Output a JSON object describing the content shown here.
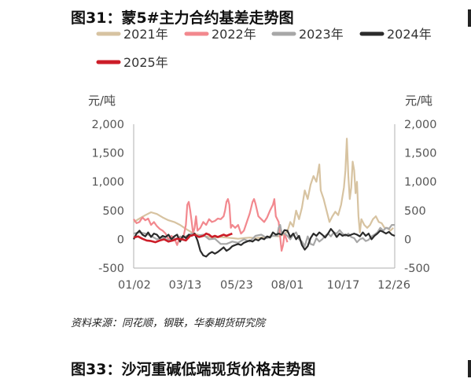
{
  "figure": {
    "title": "图31：蒙5#主力合约基差走势图",
    "source": "资料来源：同花顺，钢联，华泰期货研究院",
    "next_title": "图33：沙河重碱低端现货价格走势图"
  },
  "chart_data": {
    "type": "line",
    "unit_left": "元/吨",
    "unit_right": "元/吨",
    "ylim": [
      -500,
      2000
    ],
    "yticks": [
      "2,000",
      "1,500",
      "1,000",
      "500",
      "0",
      "-500"
    ],
    "ytick_values": [
      2000,
      1500,
      1000,
      500,
      0,
      -500
    ],
    "xlim": [
      0,
      360
    ],
    "xticks": [
      "01/02",
      "03/13",
      "05/23",
      "08/01",
      "10/17",
      "12/26"
    ],
    "xtick_days": [
      1,
      71,
      142,
      212,
      289,
      359
    ],
    "grid": false,
    "legend_position": "top",
    "series": [
      {
        "name": "2021年",
        "color": "#d7c3a1",
        "points": [
          [
            0,
            300
          ],
          [
            8,
            360
          ],
          [
            16,
            420
          ],
          [
            24,
            470
          ],
          [
            32,
            440
          ],
          [
            40,
            380
          ],
          [
            48,
            330
          ],
          [
            56,
            300
          ],
          [
            64,
            250
          ],
          [
            72,
            180
          ],
          [
            80,
            120
          ],
          [
            88,
            80
          ],
          [
            96,
            60
          ],
          [
            104,
            40
          ],
          [
            112,
            30
          ],
          [
            120,
            40
          ],
          [
            128,
            30
          ],
          [
            136,
            20
          ],
          [
            144,
            10
          ],
          [
            152,
            20
          ],
          [
            160,
            30
          ],
          [
            168,
            20
          ],
          [
            176,
            30
          ],
          [
            184,
            40
          ],
          [
            192,
            60
          ],
          [
            200,
            50
          ],
          [
            208,
            90
          ],
          [
            212,
            140
          ],
          [
            216,
            300
          ],
          [
            220,
            220
          ],
          [
            224,
            500
          ],
          [
            228,
            350
          ],
          [
            232,
            550
          ],
          [
            236,
            850
          ],
          [
            240,
            700
          ],
          [
            244,
            950
          ],
          [
            248,
            1100
          ],
          [
            252,
            1000
          ],
          [
            256,
            1300
          ],
          [
            258,
            850
          ],
          [
            262,
            700
          ],
          [
            266,
            500
          ],
          [
            270,
            300
          ],
          [
            274,
            400
          ],
          [
            278,
            480
          ],
          [
            282,
            420
          ],
          [
            286,
            600
          ],
          [
            290,
            900
          ],
          [
            292,
            1200
          ],
          [
            294,
            1750
          ],
          [
            296,
            1100
          ],
          [
            298,
            700
          ],
          [
            300,
            900
          ],
          [
            302,
            1350
          ],
          [
            304,
            1200
          ],
          [
            306,
            800
          ],
          [
            308,
            1000
          ],
          [
            310,
            400
          ],
          [
            312,
            120
          ],
          [
            314,
            350
          ],
          [
            318,
            250
          ],
          [
            322,
            200
          ],
          [
            326,
            250
          ],
          [
            330,
            350
          ],
          [
            334,
            400
          ],
          [
            338,
            300
          ],
          [
            342,
            280
          ],
          [
            346,
            200
          ],
          [
            350,
            200
          ],
          [
            354,
            150
          ],
          [
            358,
            200
          ]
        ]
      },
      {
        "name": "2022年",
        "color": "#f2888e",
        "points": [
          [
            0,
            350
          ],
          [
            4,
            280
          ],
          [
            8,
            300
          ],
          [
            12,
            380
          ],
          [
            16,
            330
          ],
          [
            20,
            360
          ],
          [
            24,
            250
          ],
          [
            28,
            300
          ],
          [
            32,
            230
          ],
          [
            36,
            180
          ],
          [
            40,
            150
          ],
          [
            44,
            100
          ],
          [
            48,
            0
          ],
          [
            52,
            60
          ],
          [
            56,
            20
          ],
          [
            60,
            -100
          ],
          [
            64,
            50
          ],
          [
            68,
            0
          ],
          [
            72,
            250
          ],
          [
            74,
            600
          ],
          [
            76,
            650
          ],
          [
            78,
            500
          ],
          [
            80,
            300
          ],
          [
            82,
            100
          ],
          [
            84,
            200
          ],
          [
            86,
            400
          ],
          [
            88,
            150
          ],
          [
            92,
            200
          ],
          [
            96,
            300
          ],
          [
            100,
            250
          ],
          [
            104,
            350
          ],
          [
            108,
            300
          ],
          [
            112,
            320
          ],
          [
            116,
            360
          ],
          [
            120,
            350
          ],
          [
            124,
            400
          ],
          [
            126,
            500
          ],
          [
            128,
            650
          ],
          [
            130,
            700
          ],
          [
            132,
            600
          ],
          [
            134,
            200
          ],
          [
            136,
            250
          ],
          [
            140,
            200
          ],
          [
            144,
            250
          ],
          [
            148,
            100
          ],
          [
            152,
            150
          ],
          [
            156,
            300
          ],
          [
            160,
            450
          ],
          [
            164,
            650
          ],
          [
            166,
            700
          ],
          [
            168,
            620
          ],
          [
            172,
            400
          ],
          [
            176,
            350
          ],
          [
            180,
            300
          ],
          [
            184,
            380
          ],
          [
            188,
            500
          ],
          [
            192,
            600
          ],
          [
            194,
            700
          ],
          [
            196,
            400
          ],
          [
            200,
            300
          ],
          [
            204,
            -200
          ],
          [
            206,
            -100
          ],
          [
            208,
            100
          ],
          [
            212,
            -50
          ]
        ]
      },
      {
        "name": "2023年",
        "color": "#a7a7a7",
        "points": [
          [
            0,
            100
          ],
          [
            8,
            120
          ],
          [
            16,
            100
          ],
          [
            24,
            60
          ],
          [
            32,
            0
          ],
          [
            40,
            30
          ],
          [
            48,
            -20
          ],
          [
            56,
            0
          ],
          [
            64,
            40
          ],
          [
            72,
            50
          ],
          [
            80,
            100
          ],
          [
            88,
            60
          ],
          [
            96,
            80
          ],
          [
            104,
            0
          ],
          [
            112,
            10
          ],
          [
            120,
            -80
          ],
          [
            128,
            -80
          ],
          [
            136,
            -40
          ],
          [
            144,
            -60
          ],
          [
            152,
            0
          ],
          [
            160,
            -40
          ],
          [
            168,
            60
          ],
          [
            176,
            80
          ],
          [
            184,
            20
          ],
          [
            192,
            60
          ],
          [
            198,
            60
          ],
          [
            200,
            200
          ],
          [
            202,
            250
          ],
          [
            204,
            120
          ],
          [
            208,
            100
          ],
          [
            212,
            60
          ],
          [
            216,
            0
          ],
          [
            220,
            80
          ],
          [
            224,
            120
          ],
          [
            228,
            0
          ],
          [
            232,
            -40
          ],
          [
            236,
            -120
          ],
          [
            240,
            50
          ],
          [
            244,
            -80
          ],
          [
            248,
            -100
          ],
          [
            252,
            20
          ],
          [
            256,
            -40
          ],
          [
            260,
            0
          ],
          [
            264,
            60
          ],
          [
            268,
            100
          ],
          [
            272,
            50
          ],
          [
            276,
            120
          ],
          [
            280,
            100
          ],
          [
            284,
            160
          ],
          [
            288,
            100
          ],
          [
            292,
            60
          ],
          [
            296,
            100
          ],
          [
            300,
            40
          ],
          [
            304,
            20
          ],
          [
            308,
            -50
          ],
          [
            312,
            0
          ],
          [
            316,
            20
          ],
          [
            320,
            -30
          ],
          [
            324,
            -10
          ],
          [
            328,
            50
          ],
          [
            332,
            80
          ],
          [
            336,
            120
          ],
          [
            340,
            200
          ],
          [
            344,
            150
          ],
          [
            348,
            200
          ],
          [
            352,
            180
          ],
          [
            356,
            250
          ],
          [
            360,
            250
          ]
        ]
      },
      {
        "name": "2024年",
        "color": "#2b2b2b",
        "points": [
          [
            0,
            0
          ],
          [
            4,
            100
          ],
          [
            8,
            150
          ],
          [
            12,
            80
          ],
          [
            16,
            50
          ],
          [
            20,
            120
          ],
          [
            24,
            40
          ],
          [
            28,
            100
          ],
          [
            32,
            80
          ],
          [
            36,
            20
          ],
          [
            40,
            60
          ],
          [
            44,
            40
          ],
          [
            48,
            80
          ],
          [
            52,
            0
          ],
          [
            56,
            50
          ],
          [
            60,
            80
          ],
          [
            64,
            -40
          ],
          [
            68,
            60
          ],
          [
            72,
            20
          ],
          [
            76,
            80
          ],
          [
            80,
            60
          ],
          [
            84,
            100
          ],
          [
            88,
            -20
          ],
          [
            92,
            -200
          ],
          [
            96,
            -280
          ],
          [
            100,
            -300
          ],
          [
            104,
            -250
          ],
          [
            108,
            -220
          ],
          [
            112,
            -250
          ],
          [
            116,
            -220
          ],
          [
            120,
            -180
          ],
          [
            124,
            -140
          ],
          [
            128,
            -200
          ],
          [
            132,
            -170
          ],
          [
            136,
            -120
          ],
          [
            140,
            -100
          ],
          [
            144,
            -80
          ],
          [
            148,
            -100
          ],
          [
            152,
            -60
          ],
          [
            156,
            -40
          ],
          [
            160,
            -20
          ],
          [
            164,
            -40
          ],
          [
            168,
            0
          ],
          [
            172,
            -20
          ],
          [
            176,
            20
          ],
          [
            180,
            0
          ],
          [
            184,
            50
          ],
          [
            188,
            30
          ],
          [
            192,
            120
          ],
          [
            196,
            80
          ],
          [
            200,
            100
          ],
          [
            204,
            80
          ],
          [
            208,
            160
          ],
          [
            212,
            150
          ],
          [
            216,
            40
          ],
          [
            220,
            100
          ],
          [
            224,
            0
          ],
          [
            228,
            60
          ],
          [
            232,
            -100
          ],
          [
            236,
            -180
          ],
          [
            240,
            -120
          ],
          [
            244,
            20
          ],
          [
            248,
            100
          ],
          [
            252,
            60
          ],
          [
            256,
            120
          ],
          [
            260,
            80
          ],
          [
            264,
            30
          ],
          [
            268,
            100
          ],
          [
            272,
            180
          ],
          [
            276,
            120
          ],
          [
            280,
            40
          ],
          [
            284,
            100
          ],
          [
            288,
            60
          ],
          [
            292,
            80
          ],
          [
            296,
            60
          ],
          [
            300,
            80
          ],
          [
            304,
            100
          ],
          [
            308,
            80
          ],
          [
            312,
            50
          ],
          [
            316,
            120
          ],
          [
            320,
            60
          ],
          [
            324,
            100
          ],
          [
            328,
            0
          ],
          [
            332,
            60
          ],
          [
            336,
            100
          ],
          [
            340,
            150
          ],
          [
            344,
            130
          ],
          [
            348,
            100
          ],
          [
            352,
            130
          ],
          [
            356,
            80
          ],
          [
            360,
            60
          ]
        ]
      },
      {
        "name": "2025年",
        "color": "#cc1d28",
        "points": [
          [
            0,
            30
          ],
          [
            6,
            50
          ],
          [
            12,
            10
          ],
          [
            18,
            -20
          ],
          [
            24,
            -30
          ],
          [
            30,
            -50
          ],
          [
            36,
            -20
          ],
          [
            42,
            0
          ],
          [
            48,
            -40
          ],
          [
            54,
            -20
          ],
          [
            60,
            10
          ],
          [
            66,
            0
          ],
          [
            72,
            -20
          ],
          [
            78,
            60
          ],
          [
            84,
            80
          ],
          [
            90,
            40
          ],
          [
            96,
            60
          ],
          [
            100,
            100
          ],
          [
            104,
            80
          ],
          [
            108,
            40
          ],
          [
            112,
            60
          ],
          [
            116,
            40
          ],
          [
            120,
            60
          ],
          [
            124,
            80
          ],
          [
            128,
            60
          ],
          [
            132,
            80
          ],
          [
            136,
            100
          ]
        ]
      }
    ]
  }
}
